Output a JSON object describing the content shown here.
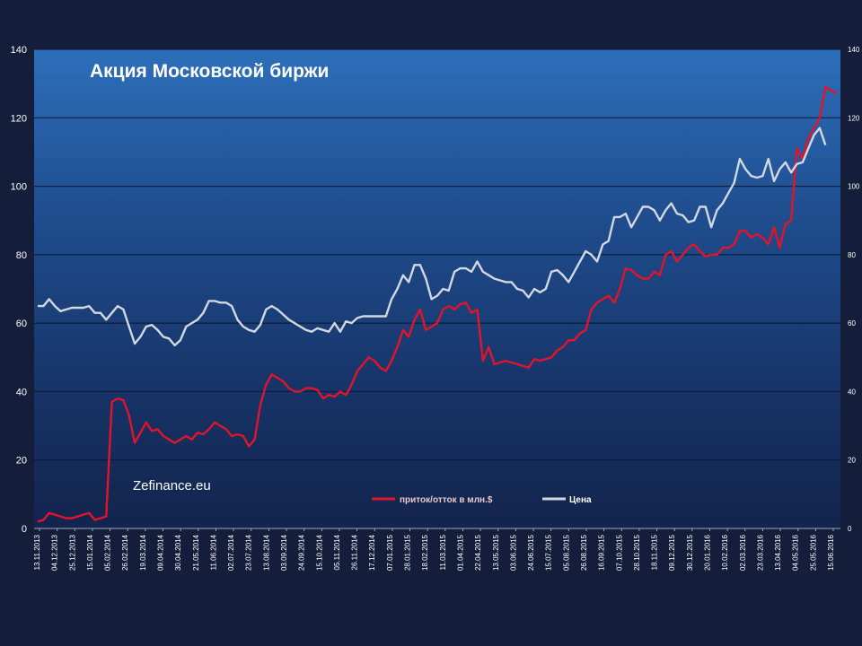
{
  "chart_data": {
    "type": "line",
    "title": "Акция Московской биржи",
    "watermark": "Zefinance.eu",
    "ylim": [
      0,
      140
    ],
    "y_ticks": [
      0,
      20,
      40,
      60,
      80,
      100,
      120,
      140
    ],
    "y_ticks_right": [
      0,
      20,
      40,
      60,
      80,
      100,
      120,
      140
    ],
    "grid": true,
    "legend_position": "bottom-center",
    "x_tick_labels": [
      "13.11.2013",
      "04.12.2013",
      "25.12.2013",
      "15.01.2014",
      "05.02.2014",
      "26.02.2014",
      "19.03.2014",
      "09.04.2014",
      "30.04.2014",
      "21.05.2014",
      "11.06.2014",
      "02.07.2014",
      "23.07.2014",
      "13.08.2014",
      "03.09.2014",
      "24.09.2014",
      "15.10.2014",
      "05.11.2014",
      "26.11.2014",
      "17.12.2014",
      "07.01.2015",
      "28.01.2015",
      "18.02.2015",
      "11.03.2015",
      "01.04.2015",
      "22.04.2015",
      "13.05.2015",
      "03.06.2015",
      "24.06.2015",
      "15.07.2015",
      "05.08.2015",
      "26.08.2015",
      "16.09.2015",
      "07.10.2015",
      "28.10.2015",
      "18.11.2015",
      "09.12.2015",
      "30.12.2015",
      "20.01.2016",
      "10.02.2016",
      "02.03.2016",
      "23.03.2016",
      "13.04.2016",
      "04.05.2016",
      "25.05.2016",
      "15.06.2016"
    ],
    "series": [
      {
        "name": "приток/отток в млн.$",
        "color": "#e0142a",
        "values": [
          2,
          2.5,
          4.5,
          4,
          3.5,
          3,
          3,
          3.5,
          4,
          4.5,
          2.5,
          3,
          3.5,
          37,
          38,
          37.5,
          33,
          25,
          28,
          31,
          28.5,
          29,
          27,
          26,
          25,
          26,
          27,
          26,
          28,
          27.5,
          29,
          31,
          30,
          29,
          27,
          27.5,
          27,
          24,
          26,
          36,
          42,
          45,
          44,
          43,
          41,
          40,
          40,
          41,
          41,
          40.5,
          38,
          39,
          38.5,
          40,
          39,
          42,
          46,
          48,
          50,
          49,
          47,
          46,
          49,
          53,
          58,
          56,
          61,
          64,
          58,
          59,
          60,
          64,
          65,
          64,
          65.5,
          66,
          63,
          64,
          49,
          53,
          48,
          48.5,
          49,
          48.5,
          48,
          47.5,
          47,
          49.5,
          49,
          49.5,
          50,
          52,
          53,
          55,
          55,
          57,
          58,
          64,
          66,
          67,
          68,
          66,
          70,
          76,
          75.5,
          74,
          73,
          73,
          75,
          74,
          80,
          81,
          78,
          80,
          82,
          83,
          81,
          79.5,
          80,
          80,
          82,
          82,
          83,
          87,
          87,
          85,
          86,
          85,
          83,
          88,
          82,
          89,
          90,
          111,
          108,
          114,
          117,
          120,
          129,
          128,
          127
        ]
      },
      {
        "name": "Цена",
        "color": "#d2d8e2",
        "values": [
          65,
          65,
          67,
          65,
          63.5,
          64,
          64.5,
          64.5,
          64.5,
          65,
          63,
          63,
          61,
          63,
          65,
          64,
          59,
          54,
          56,
          59,
          59.5,
          58,
          56,
          55.5,
          53.5,
          55,
          59,
          60,
          61,
          63,
          66.5,
          66.5,
          66,
          66,
          65,
          61,
          59,
          58,
          57.5,
          59.5,
          64,
          65,
          64,
          62.5,
          61,
          60,
          59,
          58,
          57.5,
          58.5,
          58,
          57.5,
          60,
          57.5,
          60.5,
          60,
          61.5,
          62,
          62,
          62,
          62,
          62,
          67,
          70,
          74,
          72,
          77,
          77,
          73,
          67,
          68,
          70,
          69.5,
          75,
          76,
          76,
          75,
          78,
          75,
          74,
          73,
          72.5,
          72,
          72,
          70,
          69.5,
          67.5,
          70,
          69,
          70,
          75,
          75.5,
          74,
          72,
          75,
          78,
          81,
          80,
          78,
          83,
          84,
          91,
          91,
          92,
          88,
          91,
          94,
          94,
          93,
          90,
          93,
          95,
          92,
          91.5,
          89.5,
          90,
          94,
          94,
          88,
          93,
          95,
          98,
          101,
          108,
          105,
          103,
          102.5,
          103,
          108,
          101.5,
          105,
          107,
          104,
          106.5,
          107,
          111,
          115,
          117,
          112
        ]
      }
    ]
  }
}
